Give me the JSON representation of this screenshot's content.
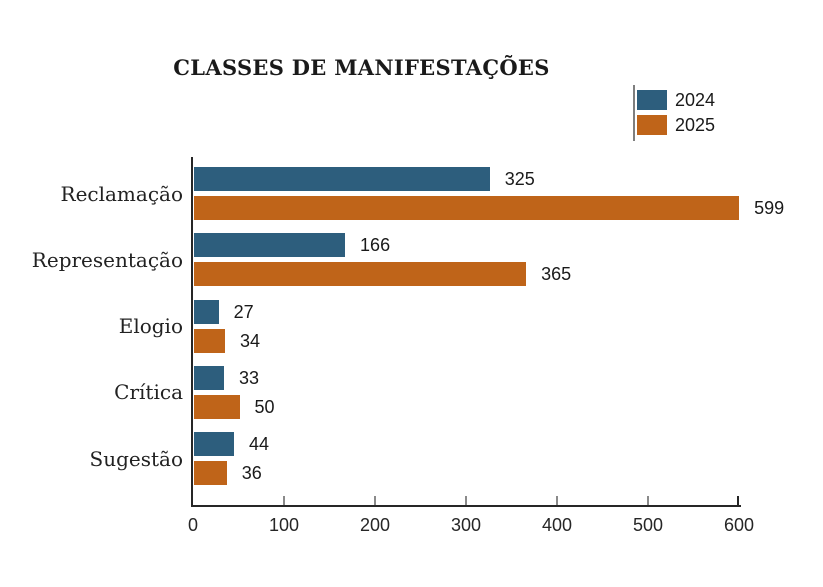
{
  "title": "CLASSES DE MANIFESTAÇÕES",
  "colors": {
    "series_2024": "#2D5E7D",
    "series_2025": "#BF6419",
    "axis": "#262626",
    "tick": "#8A8A8A",
    "text": "#1A1A1A",
    "legend_line": "#7F7F7F",
    "background": "#FFFFFF"
  },
  "legend": {
    "items": [
      {
        "label": "2024"
      },
      {
        "label": "2025"
      }
    ]
  },
  "chart_data": {
    "type": "bar",
    "orientation": "horizontal",
    "title": "CLASSES DE MANIFESTAÇÕES",
    "categories": [
      "Reclamação",
      "Representação",
      "Elogio",
      "Crítica",
      "Sugestão"
    ],
    "series": [
      {
        "name": "2024",
        "color": "#2D5E7D",
        "values": [
          325,
          166,
          27,
          33,
          44
        ]
      },
      {
        "name": "2025",
        "color": "#BF6419",
        "values": [
          599,
          365,
          34,
          50,
          36
        ]
      }
    ],
    "x_ticks": [
      0,
      100,
      200,
      300,
      400,
      500,
      600
    ],
    "xlim": [
      0,
      600
    ],
    "xlabel": "",
    "ylabel": "",
    "grid": false,
    "value_labels": true,
    "legend_position": "upper right"
  }
}
